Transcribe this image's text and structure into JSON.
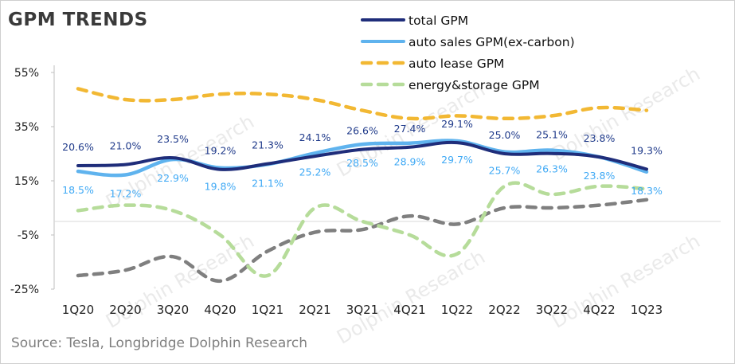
{
  "title": "GPM TRENDS",
  "source": "Source: Tesla, Longbridge Dolphin Research",
  "watermark": "Dolphin Research",
  "chart_data": {
    "type": "line",
    "categories": [
      "1Q20",
      "2Q20",
      "3Q20",
      "4Q20",
      "1Q21",
      "2Q21",
      "3Q21",
      "4Q21",
      "1Q22",
      "2Q22",
      "3Q22",
      "4Q22",
      "1Q23"
    ],
    "ylim": [
      -25,
      55
    ],
    "yticks": [
      55,
      35,
      15,
      -5,
      -25
    ],
    "ytick_labels": [
      "55%",
      "35%",
      "15%",
      "-5%",
      "-25%"
    ],
    "grid": false,
    "legend_position": "top-right",
    "series": [
      {
        "name": "total GPM",
        "color": "#1f2d7a",
        "dashed": false,
        "values": [
          20.6,
          21.0,
          23.5,
          19.2,
          21.3,
          24.1,
          26.6,
          27.4,
          29.1,
          25.0,
          25.1,
          23.8,
          19.3
        ],
        "labels": [
          "20.6%",
          "21.0%",
          "23.5%",
          "19.2%",
          "21.3%",
          "24.1%",
          "26.6%",
          "27.4%",
          "29.1%",
          "25.0%",
          "25.1%",
          "23.8%",
          "19.3%"
        ],
        "label_color": "#1f3a8a"
      },
      {
        "name": "auto sales GPM(ex-carbon)",
        "color": "#5fb3ee",
        "dashed": false,
        "values": [
          18.5,
          17.2,
          22.9,
          19.8,
          21.1,
          25.2,
          28.5,
          28.9,
          29.7,
          25.7,
          26.3,
          23.8,
          18.3
        ],
        "labels": [
          "18.5%",
          "17.2%",
          "22.9%",
          "19.8%",
          "21.1%",
          "25.2%",
          "28.5%",
          "28.9%",
          "29.7%",
          "25.7%",
          "26.3%",
          "23.8%",
          "18.3%"
        ],
        "label_color": "#3fa9f5"
      },
      {
        "name": "auto lease GPM",
        "color": "#f2b833",
        "dashed": true,
        "values": [
          49,
          45,
          45,
          47,
          47,
          45,
          41,
          38,
          39,
          38,
          39,
          42,
          41
        ]
      },
      {
        "name": "energy&storage GPM",
        "color": "#b6dc9a",
        "dashed": true,
        "values": [
          4,
          6,
          4,
          -5,
          -20,
          5,
          0,
          -5,
          -12,
          13,
          10,
          13,
          12
        ]
      },
      {
        "color": "#7f7f7f",
        "dashed": true,
        "values": [
          -20,
          -18,
          -13,
          -22,
          -11,
          -4,
          -3,
          2,
          -1,
          5,
          5,
          6,
          8
        ]
      }
    ]
  }
}
